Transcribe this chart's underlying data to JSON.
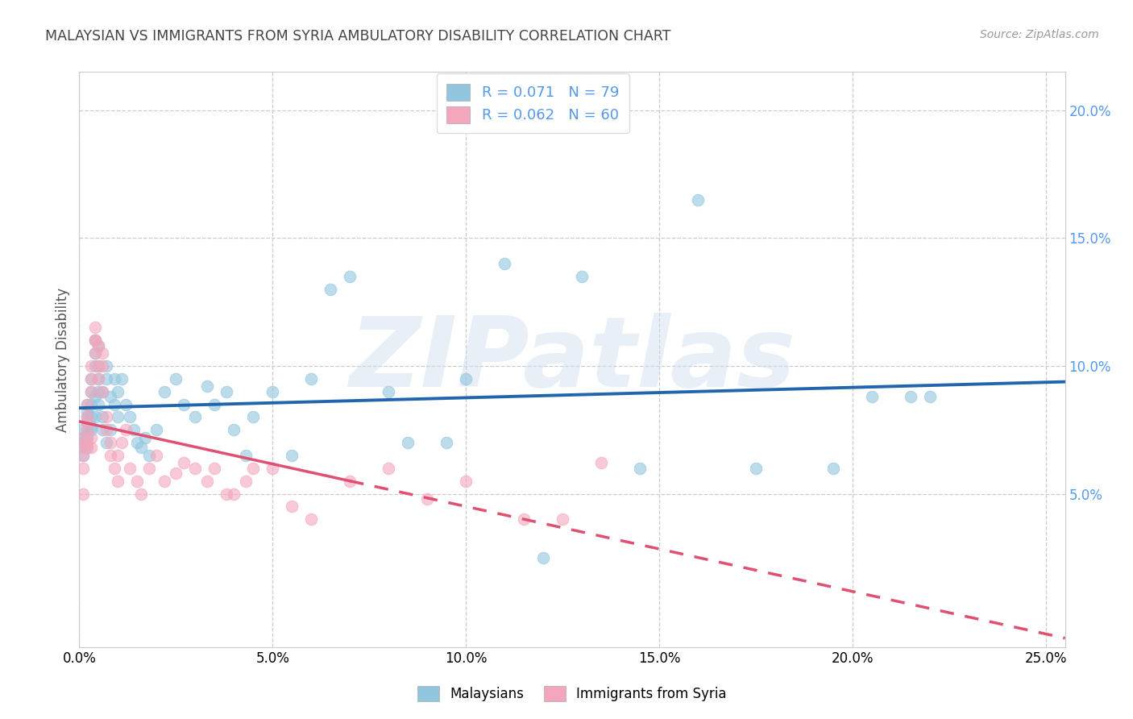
{
  "title": "MALAYSIAN VS IMMIGRANTS FROM SYRIA AMBULATORY DISABILITY CORRELATION CHART",
  "source": "Source: ZipAtlas.com",
  "ylabel": "Ambulatory Disability",
  "watermark": "ZIPatlas",
  "xlim": [
    0.0,
    0.255
  ],
  "ylim": [
    -0.01,
    0.215
  ],
  "xticks": [
    0.0,
    0.05,
    0.1,
    0.15,
    0.2,
    0.25
  ],
  "yticks_right": [
    0.05,
    0.1,
    0.15,
    0.2
  ],
  "legend1_label": "R = 0.071   N = 79",
  "legend2_label": "R = 0.062   N = 60",
  "legend_bottom1": "Malaysians",
  "legend_bottom2": "Immigrants from Syria",
  "blue_color": "#92c5de",
  "pink_color": "#f4a6bc",
  "blue_line_color": "#2166ac",
  "pink_line_color": "#e05070",
  "title_color": "#444444",
  "right_axis_color": "#5599ee",
  "malaysians_x": [
    0.001,
    0.001,
    0.001,
    0.001,
    0.001,
    0.002,
    0.002,
    0.002,
    0.002,
    0.002,
    0.002,
    0.002,
    0.002,
    0.003,
    0.003,
    0.003,
    0.003,
    0.003,
    0.003,
    0.004,
    0.004,
    0.004,
    0.004,
    0.004,
    0.005,
    0.005,
    0.005,
    0.005,
    0.005,
    0.006,
    0.006,
    0.006,
    0.007,
    0.007,
    0.007,
    0.008,
    0.008,
    0.009,
    0.009,
    0.01,
    0.01,
    0.011,
    0.012,
    0.013,
    0.014,
    0.015,
    0.016,
    0.017,
    0.018,
    0.02,
    0.022,
    0.025,
    0.027,
    0.03,
    0.033,
    0.035,
    0.038,
    0.04,
    0.043,
    0.045,
    0.05,
    0.055,
    0.06,
    0.065,
    0.07,
    0.08,
    0.085,
    0.095,
    0.1,
    0.11,
    0.12,
    0.13,
    0.145,
    0.16,
    0.175,
    0.195,
    0.205,
    0.215,
    0.22
  ],
  "malaysians_y": [
    0.075,
    0.072,
    0.068,
    0.065,
    0.07,
    0.075,
    0.072,
    0.068,
    0.08,
    0.078,
    0.082,
    0.085,
    0.073,
    0.076,
    0.09,
    0.08,
    0.085,
    0.095,
    0.075,
    0.08,
    0.088,
    0.1,
    0.105,
    0.11,
    0.108,
    0.1,
    0.095,
    0.09,
    0.085,
    0.08,
    0.075,
    0.09,
    0.07,
    0.095,
    0.1,
    0.088,
    0.075,
    0.085,
    0.095,
    0.08,
    0.09,
    0.095,
    0.085,
    0.08,
    0.075,
    0.07,
    0.068,
    0.072,
    0.065,
    0.075,
    0.09,
    0.095,
    0.085,
    0.08,
    0.092,
    0.085,
    0.09,
    0.075,
    0.065,
    0.08,
    0.09,
    0.065,
    0.095,
    0.13,
    0.135,
    0.09,
    0.07,
    0.07,
    0.095,
    0.14,
    0.025,
    0.135,
    0.06,
    0.165,
    0.06,
    0.06,
    0.088,
    0.088,
    0.088
  ],
  "syria_x": [
    0.001,
    0.001,
    0.001,
    0.001,
    0.001,
    0.002,
    0.002,
    0.002,
    0.002,
    0.002,
    0.002,
    0.003,
    0.003,
    0.003,
    0.003,
    0.003,
    0.004,
    0.004,
    0.004,
    0.004,
    0.005,
    0.005,
    0.005,
    0.006,
    0.006,
    0.006,
    0.007,
    0.007,
    0.008,
    0.008,
    0.009,
    0.01,
    0.01,
    0.011,
    0.012,
    0.013,
    0.015,
    0.016,
    0.018,
    0.02,
    0.022,
    0.025,
    0.027,
    0.03,
    0.033,
    0.035,
    0.038,
    0.04,
    0.043,
    0.045,
    0.05,
    0.055,
    0.06,
    0.07,
    0.08,
    0.09,
    0.1,
    0.115,
    0.125,
    0.135
  ],
  "syria_y": [
    0.068,
    0.065,
    0.06,
    0.072,
    0.05,
    0.068,
    0.075,
    0.08,
    0.07,
    0.078,
    0.085,
    0.072,
    0.068,
    0.09,
    0.095,
    0.1,
    0.105,
    0.11,
    0.115,
    0.11,
    0.108,
    0.1,
    0.095,
    0.09,
    0.1,
    0.105,
    0.08,
    0.075,
    0.07,
    0.065,
    0.06,
    0.055,
    0.065,
    0.07,
    0.075,
    0.06,
    0.055,
    0.05,
    0.06,
    0.065,
    0.055,
    0.058,
    0.062,
    0.06,
    0.055,
    0.06,
    0.05,
    0.05,
    0.055,
    0.06,
    0.06,
    0.045,
    0.04,
    0.055,
    0.06,
    0.048,
    0.055,
    0.04,
    0.04,
    0.062
  ],
  "grid_yticks": [
    0.05,
    0.1,
    0.15,
    0.2
  ],
  "grid_xticks": [
    0.0,
    0.05,
    0.1,
    0.15,
    0.2,
    0.25
  ]
}
